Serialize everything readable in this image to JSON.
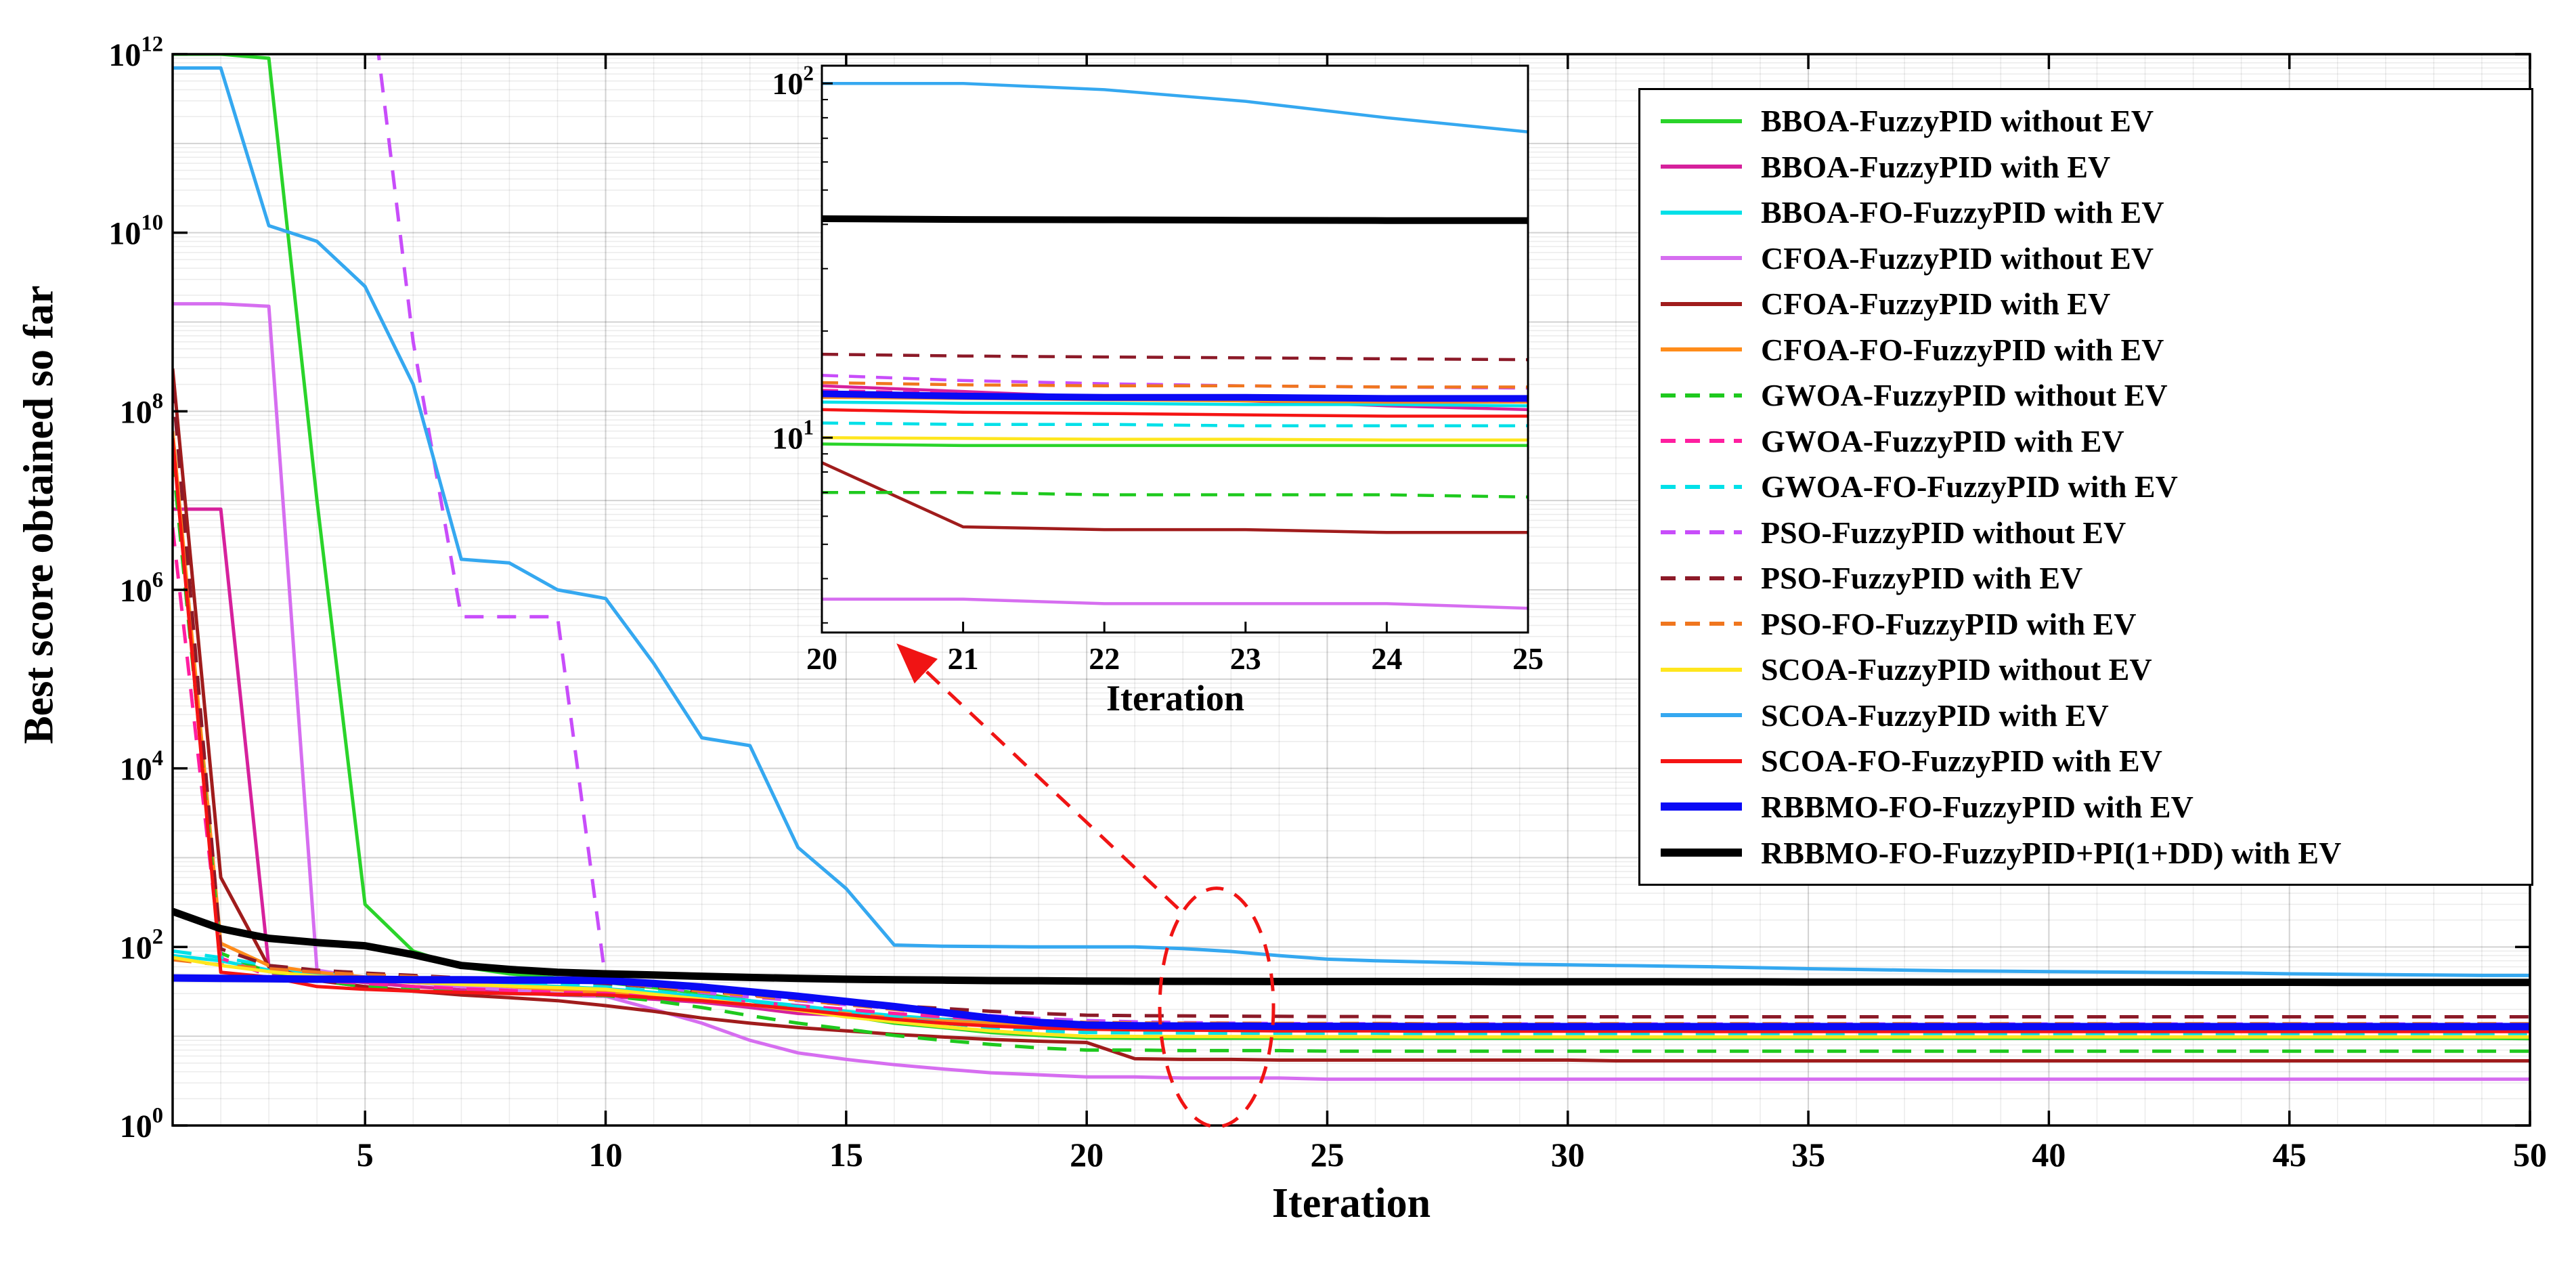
{
  "chart_data": {
    "type": "line",
    "title": "",
    "xlabel": "Iteration",
    "ylabel": "Best score obtained so far",
    "grid": "major+minor",
    "legend_position": "northeast",
    "x_axis": {
      "range": [
        1,
        50
      ],
      "ticks": [
        5,
        10,
        15,
        20,
        25,
        30,
        35,
        40,
        45,
        50
      ]
    },
    "y_axis": {
      "scale": "log",
      "range_exponents": [
        0,
        12
      ],
      "tick_exponents": [
        0,
        2,
        4,
        6,
        8,
        10,
        12
      ]
    },
    "x_values": [
      1,
      2,
      3,
      4,
      5,
      6,
      7,
      8,
      9,
      10,
      11,
      12,
      13,
      14,
      15,
      16,
      17,
      18,
      19,
      20,
      21,
      22,
      23,
      24,
      25,
      26,
      27,
      28,
      29,
      30,
      31,
      32,
      33,
      34,
      35,
      36,
      37,
      38,
      39,
      40,
      41,
      42,
      43,
      44,
      45,
      46,
      47,
      48,
      49,
      50
    ],
    "inset": {
      "x_range": [
        20,
        25
      ],
      "x_ticks": [
        20,
        21,
        22,
        23,
        24,
        25
      ],
      "y_log_range": [
        0.45,
        2.05
      ],
      "y_tick_exponents": [
        1,
        2
      ],
      "xlabel": "Iteration"
    },
    "annotations": {
      "color": "#f01414",
      "ellipse": {
        "x_center": 22.7,
        "y_center": 21
      },
      "arrow": {
        "from": {
          "x": 21.9,
          "y": 270
        },
        "to": {
          "x": 16.2,
          "y": 210000
        }
      }
    },
    "series": [
      {
        "id": "bboa-fuzzypid-without-ev",
        "label": "BBOA-FuzzyPID without EV",
        "color": "#2ad42a",
        "dash": "solid",
        "thick": false,
        "values": [
          1000000000000.0,
          1000000000000.0,
          900000000000.0,
          10000000.0,
          300,
          90,
          60,
          50,
          45,
          40,
          35,
          30,
          25,
          20,
          17,
          14,
          12.5,
          11,
          10.2,
          9.6,
          9.5,
          9.5,
          9.5,
          9.5,
          9.5,
          9.5,
          9.5,
          9.5,
          9.5,
          9.5,
          9.5,
          9.5,
          9.5,
          9.5,
          9.5,
          9.5,
          9.5,
          9.5,
          9.5,
          9.5,
          9.5,
          9.5,
          9.5,
          9.5,
          9.5,
          9.5,
          9.5,
          9.5,
          9.5,
          9.4
        ]
      },
      {
        "id": "bboa-fuzzypid-with-ev",
        "label": "BBOA-FuzzyPID with EV",
        "color": "#d6219c",
        "dash": "solid",
        "thick": false,
        "values": [
          8000000,
          8000000,
          60,
          45,
          40,
          36,
          33,
          31,
          29,
          28,
          26,
          24,
          21,
          18,
          17,
          16,
          15.5,
          15,
          14.5,
          14,
          13.5,
          13,
          12.7,
          12.3,
          12,
          11.9,
          11.8,
          11.8,
          11.7,
          11.7,
          11.7,
          11.6,
          11.6,
          11.6,
          11.6,
          11.5,
          11.5,
          11.5,
          11.5,
          11.5,
          11.5,
          11.5,
          11.5,
          11.5,
          11.5,
          11.5,
          11.5,
          11.5,
          11.5,
          11.5
        ]
      },
      {
        "id": "bboa-fo-fuzzypid-with-ev",
        "label": "BBOA-FO-FuzzyPID with EV",
        "color": "#00e0e8",
        "dash": "solid",
        "thick": false,
        "values": [
          80,
          70,
          55,
          50,
          45,
          42,
          40,
          38,
          36,
          34,
          31,
          28,
          25,
          22,
          19,
          17,
          15.5,
          14,
          13.2,
          12.6,
          12.5,
          12.5,
          12.4,
          12.4,
          12.3,
          12.3,
          12.3,
          12.3,
          12.3,
          12.2,
          12.2,
          12.2,
          12.2,
          12.2,
          12.2,
          12.2,
          12.2,
          12.2,
          12.2,
          12.2,
          12.2,
          12.2,
          12.2,
          12.2,
          12.2,
          12.2,
          12.2,
          12.2,
          12.2,
          12.2
        ]
      },
      {
        "id": "cfoa-fuzzypid-without-ev",
        "label": "CFOA-FuzzyPID without EV",
        "color": "#d66ef0",
        "dash": "solid",
        "thick": false,
        "values": [
          1600000000.0,
          1600000000.0,
          1500000000.0,
          55,
          45,
          40,
          36,
          33,
          30,
          28,
          20,
          14,
          9,
          6.5,
          5.5,
          4.8,
          4.3,
          3.9,
          3.7,
          3.5,
          3.5,
          3.4,
          3.4,
          3.4,
          3.3,
          3.3,
          3.3,
          3.3,
          3.3,
          3.3,
          3.3,
          3.3,
          3.3,
          3.3,
          3.3,
          3.3,
          3.3,
          3.3,
          3.3,
          3.3,
          3.3,
          3.3,
          3.3,
          3.3,
          3.3,
          3.3,
          3.3,
          3.3,
          3.3,
          3.3
        ]
      },
      {
        "id": "cfoa-fuzzypid-with-ev",
        "label": "CFOA-FuzzyPID with EV",
        "color": "#a01c1c",
        "dash": "solid",
        "thick": false,
        "values": [
          300000000.0,
          600,
          60,
          42,
          36,
          32,
          29,
          27,
          25,
          22,
          19,
          16,
          14,
          12.5,
          11.5,
          10.5,
          9.8,
          9.2,
          8.8,
          8.5,
          5.6,
          5.5,
          5.5,
          5.4,
          5.4,
          5.4,
          5.4,
          5.4,
          5.4,
          5.4,
          5.3,
          5.3,
          5.3,
          5.3,
          5.3,
          5.3,
          5.3,
          5.3,
          5.3,
          5.3,
          5.3,
          5.3,
          5.3,
          5.3,
          5.3,
          5.3,
          5.3,
          5.3,
          5.3,
          5.3
        ]
      },
      {
        "id": "cfoa-fo-fuzzypid-with-ev",
        "label": "CFOA-FO-FuzzyPID with EV",
        "color": "#ff8c1a",
        "dash": "solid",
        "thick": false,
        "values": [
          60000000.0,
          110,
          62,
          52,
          46,
          42,
          39,
          36,
          33,
          31,
          28,
          25,
          22.5,
          20,
          18,
          16,
          14.8,
          14,
          13.4,
          13,
          12.9,
          12.8,
          12.7,
          12.6,
          12.6,
          12.6,
          12.5,
          12.5,
          12.5,
          12.5,
          12.5,
          12.5,
          12.5,
          12.5,
          12.5,
          12.5,
          12.5,
          12.5,
          12.5,
          12.5,
          12.5,
          12.5,
          12.5,
          12.5,
          12.5,
          12.5,
          12.5,
          12.5,
          12.5,
          12.5
        ]
      },
      {
        "id": "gwoa-fuzzypid-without-ev",
        "label": "GWOA-FuzzyPID without EV",
        "color": "#1ec91e",
        "dash": "dashed",
        "thick": false,
        "values": [
          30000000.0,
          85,
          52,
          42,
          36,
          33,
          31.5,
          30.5,
          29.5,
          28.5,
          25,
          21,
          17,
          14,
          12,
          10.2,
          9,
          8.1,
          7.4,
          7,
          7,
          6.9,
          6.9,
          6.9,
          6.8,
          6.8,
          6.8,
          6.8,
          6.8,
          6.8,
          6.8,
          6.8,
          6.8,
          6.8,
          6.8,
          6.8,
          6.8,
          6.8,
          6.8,
          6.8,
          6.8,
          6.8,
          6.8,
          6.8,
          6.8,
          6.8,
          6.8,
          6.8,
          6.8,
          6.8
        ]
      },
      {
        "id": "gwoa-fuzzypid-with-ev",
        "label": "GWOA-FuzzyPID with EV",
        "color": "#ff1ea0",
        "dash": "dashed",
        "thick": false,
        "values": [
          5000000.0,
          75,
          48,
          42,
          39,
          36,
          34,
          32.5,
          31,
          30,
          28,
          26,
          24,
          22,
          20,
          18,
          16.5,
          15.3,
          14.3,
          13.6,
          13.3,
          13.1,
          12.9,
          12.8,
          12.7,
          12.7,
          12.6,
          12.6,
          12.6,
          12.6,
          12.6,
          12.6,
          12.6,
          12.6,
          12.6,
          12.6,
          12.6,
          12.6,
          12.6,
          12.6,
          12.6,
          12.6,
          12.6,
          12.6,
          12.6,
          12.6,
          12.6,
          12.6,
          12.6,
          12.6
        ]
      },
      {
        "id": "gwoa-fo-fuzzypid-with-ev",
        "label": "GWOA-FO-FuzzyPID with EV",
        "color": "#00e0e8",
        "dash": "dashed",
        "thick": false,
        "values": [
          90,
          76,
          62,
          54,
          48,
          45,
          43,
          41,
          39.5,
          36,
          32,
          28,
          24.5,
          21.5,
          18.5,
          16,
          14,
          12.5,
          11.5,
          11,
          10.9,
          10.9,
          10.8,
          10.8,
          10.8,
          10.8,
          10.7,
          10.7,
          10.7,
          10.7,
          10.7,
          10.7,
          10.7,
          10.7,
          10.7,
          10.7,
          10.7,
          10.7,
          10.7,
          10.7,
          10.7,
          10.7,
          10.7,
          10.7,
          10.7,
          10.7,
          10.7,
          10.7,
          10.7,
          10.7
        ]
      },
      {
        "id": "pso-fuzzypid-without-ev",
        "label": "PSO-FuzzyPID without EV",
        "color": "#c84dfa",
        "dash": "dashed",
        "thick": false,
        "values": [
          20000000000000.0,
          20000000000000.0,
          20000000000000.0,
          20000000000000.0,
          18000000000000.0,
          600000000.0,
          500000.0,
          500000.0,
          500000.0,
          42,
          36,
          31,
          27.5,
          25,
          22.5,
          20.5,
          18.5,
          17,
          15.8,
          15,
          14.5,
          14.2,
          14,
          13.9,
          13.8,
          13.8,
          13.7,
          13.7,
          13.7,
          13.7,
          13.7,
          13.7,
          13.7,
          13.7,
          13.7,
          13.7,
          13.7,
          13.7,
          13.7,
          13.7,
          13.7,
          13.7,
          13.7,
          13.7,
          13.7,
          13.7,
          13.7,
          13.7,
          13.7,
          13.7
        ]
      },
      {
        "id": "pso-fuzzypid-with-ev",
        "label": "PSO-FuzzyPID with EV",
        "color": "#8c1a28",
        "dash": "dashed",
        "thick": false,
        "values": [
          200000000.0,
          95,
          62,
          55,
          51,
          48,
          45,
          43,
          41,
          39,
          35.5,
          32,
          29,
          26.5,
          24,
          22,
          20.5,
          19,
          18,
          17.2,
          17,
          16.9,
          16.8,
          16.7,
          16.6,
          16.6,
          16.5,
          16.5,
          16.5,
          16.5,
          16.5,
          16.5,
          16.5,
          16.5,
          16.5,
          16.5,
          16.5,
          16.5,
          16.5,
          16.5,
          16.5,
          16.5,
          16.5,
          16.5,
          16.5,
          16.5,
          16.5,
          16.5,
          16.5,
          16.5
        ]
      },
      {
        "id": "pso-fo-fuzzypid-with-ev",
        "label": "PSO-FO-FuzzyPID with EV",
        "color": "#f0761e",
        "dash": "dashed",
        "thick": false,
        "values": [
          72,
          63,
          57,
          52,
          49,
          46.5,
          44.5,
          43,
          41.5,
          40,
          36,
          32,
          28.5,
          25.5,
          22.5,
          20,
          17.8,
          16,
          15,
          14.3,
          14.1,
          14,
          14,
          13.9,
          13.9,
          13.9,
          13.8,
          13.8,
          13.8,
          13.8,
          13.8,
          13.8,
          13.8,
          13.8,
          13.8,
          13.8,
          13.8,
          13.8,
          13.8,
          13.8,
          13.8,
          13.8,
          13.8,
          13.8,
          13.8,
          13.8,
          13.8,
          13.8,
          13.8,
          13.8
        ]
      },
      {
        "id": "scoa-fuzzypid-without-ev",
        "label": "SCOA-FuzzyPID without EV",
        "color": "#ffe61e",
        "dash": "solid",
        "thick": false,
        "values": [
          76,
          62,
          53,
          47,
          43,
          40,
          38,
          36.5,
          35,
          33.5,
          29.5,
          26,
          22.5,
          19.5,
          16.5,
          14.5,
          12.8,
          11.5,
          10.6,
          10,
          9.95,
          9.9,
          9.9,
          9.85,
          9.85,
          9.85,
          9.8,
          9.8,
          9.8,
          9.8,
          9.8,
          9.8,
          9.8,
          9.8,
          9.8,
          9.8,
          9.8,
          9.8,
          9.8,
          9.8,
          9.8,
          9.8,
          9.8,
          9.8,
          9.8,
          9.8,
          9.8,
          9.8,
          9.8,
          9.8
        ]
      },
      {
        "id": "scoa-fuzzypid-with-ev",
        "label": "SCOA-FuzzyPID with EV",
        "color": "#35a8f0",
        "dash": "solid",
        "thick": false,
        "values": [
          700000000000.0,
          700000000000.0,
          12000000000.0,
          8000000000.0,
          2500000000.0,
          200000000.0,
          2200000.0,
          2000000.0,
          1000000.0,
          800000.0,
          150000.0,
          22000.0,
          18000.0,
          1300,
          450,
          105,
          102,
          101,
          100,
          100,
          100,
          96,
          89,
          80,
          73,
          70,
          68,
          66,
          64,
          63,
          62,
          61,
          60,
          58.5,
          57,
          56,
          55,
          54,
          53.5,
          53,
          52.5,
          52,
          51.5,
          51,
          50,
          49.5,
          49,
          48.5,
          48,
          48
        ]
      },
      {
        "id": "scoa-fo-fuzzypid-with-ev",
        "label": "SCOA-FO-FuzzyPID with EV",
        "color": "#f51414",
        "dash": "solid",
        "thick": false,
        "values": [
          50000000.0,
          52,
          46,
          36,
          33.5,
          32,
          31,
          30,
          29.5,
          29,
          27,
          25,
          22.5,
          20,
          17.5,
          15.5,
          14,
          13,
          12.4,
          12,
          11.8,
          11.7,
          11.6,
          11.5,
          11.5,
          11.5,
          11.4,
          11.4,
          11.4,
          11.4,
          11.4,
          11.4,
          11.3,
          11.3,
          11.3,
          11.3,
          11.3,
          11.3,
          11.3,
          11.3,
          11.3,
          11.3,
          11.3,
          11.3,
          11.3,
          11.3,
          11.3,
          11.3,
          11.3,
          11.3
        ]
      },
      {
        "id": "rbbmo-fo-fuzzypid-with-ev",
        "label": "RBBMO-FO-FuzzyPID with EV",
        "color": "#0a0af5",
        "dash": "solid",
        "thick": true,
        "values": [
          45,
          44.5,
          44,
          43.5,
          43.5,
          43,
          43,
          42.5,
          42.5,
          42,
          39,
          35.5,
          31.5,
          28,
          24.5,
          21.5,
          18.5,
          16,
          14.3,
          13.3,
          13.1,
          13,
          13,
          12.9,
          12.9,
          12.9,
          12.8,
          12.8,
          12.8,
          12.8,
          12.8,
          12.8,
          12.8,
          12.8,
          12.8,
          12.8,
          12.8,
          12.8,
          12.8,
          12.8,
          12.8,
          12.8,
          12.8,
          12.8,
          12.8,
          12.8,
          12.8,
          12.8,
          12.8,
          12.8
        ]
      },
      {
        "id": "rbbmo-fo-fuzzypid-pi1dd-with-ev",
        "label": "RBBMO-FO-FuzzyPID+PI(1+DD) with EV",
        "color": "#000000",
        "dash": "solid",
        "thick": true,
        "values": [
          250,
          160,
          125,
          112,
          103,
          82,
          62,
          56,
          52,
          50,
          48.5,
          47,
          45.5,
          44.5,
          43.5,
          43,
          42.5,
          42,
          41.8,
          41.5,
          41.3,
          41.2,
          41.1,
          41,
          41,
          41,
          40.9,
          40.9,
          40.8,
          40.8,
          40.7,
          40.7,
          40.6,
          40.6,
          40.5,
          40.5,
          40.5,
          40.4,
          40.4,
          40.3,
          40.3,
          40.3,
          40.2,
          40.2,
          40.2,
          40.1,
          40.1,
          40.1,
          40,
          40
        ]
      }
    ]
  }
}
